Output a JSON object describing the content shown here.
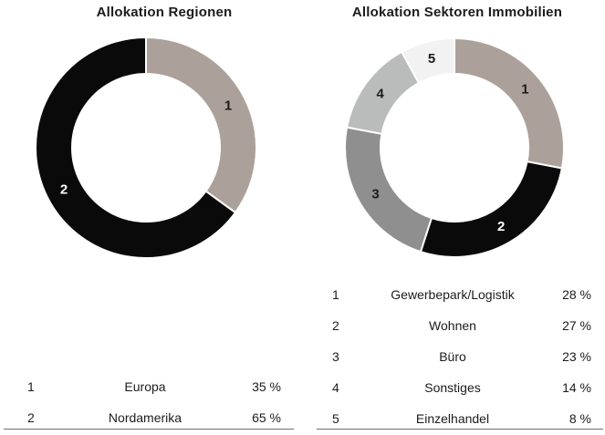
{
  "styles": {
    "background": "#ffffff",
    "text_color": "#1c1c1c",
    "rule_color": "#6e6e6e",
    "segment_gap_color": "#ffffff"
  },
  "chart_data": [
    {
      "type": "pie",
      "subtype": "donut",
      "title": "Allokation Regionen",
      "categories": [
        "Europa",
        "Nordamerika"
      ],
      "values": [
        35,
        65
      ],
      "unit": "%",
      "percent_labels": [
        "35 %",
        "65 %"
      ],
      "segment_numbers": [
        "1",
        "2"
      ],
      "colors": [
        "#aca19a",
        "#0a0a0a"
      ],
      "number_label_colors": [
        "#1c1c1c",
        "#ffffff"
      ],
      "start_angle_deg": 0,
      "direction": "clockwise",
      "legend_position": "below"
    },
    {
      "type": "pie",
      "subtype": "donut",
      "title": "Allokation Sektoren Immobilien",
      "categories": [
        "Gewerbepark/Logistik",
        "Wohnen",
        "Büro",
        "Sonstiges",
        "Einzelhandel"
      ],
      "values": [
        28,
        27,
        23,
        14,
        8
      ],
      "unit": "%",
      "percent_labels": [
        "28 %",
        "27 %",
        "23 %",
        "14 %",
        "8 %"
      ],
      "segment_numbers": [
        "1",
        "2",
        "3",
        "4",
        "5"
      ],
      "colors": [
        "#aca19a",
        "#0a0a0a",
        "#8f8f8f",
        "#b9bcbb",
        "#f2f2f2"
      ],
      "number_label_colors": [
        "#1c1c1c",
        "#ffffff",
        "#1c1c1c",
        "#1c1c1c",
        "#1c1c1c"
      ],
      "start_angle_deg": 0,
      "direction": "clockwise",
      "legend_position": "below"
    }
  ]
}
